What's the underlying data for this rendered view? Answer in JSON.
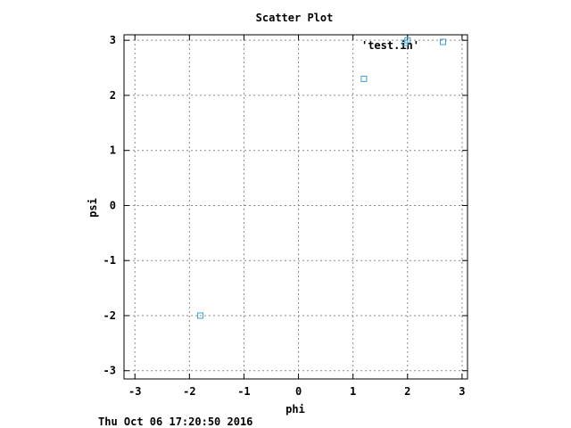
{
  "chart_data": {
    "type": "scatter",
    "title": "Scatter Plot",
    "xlabel": "phi",
    "ylabel": "psi",
    "xlim": [
      -3.2,
      3.1
    ],
    "ylim": [
      -3.15,
      3.1
    ],
    "xticks": [
      -3,
      -2,
      -1,
      0,
      1,
      2,
      3
    ],
    "yticks": [
      -3,
      -2,
      -1,
      0,
      1,
      2,
      3
    ],
    "xtick_labels": [
      "-3",
      "-2",
      "-1",
      "0",
      "1",
      "2",
      "3"
    ],
    "ytick_labels": [
      "-3",
      "-2",
      "-1",
      "0",
      "1",
      "2",
      "3"
    ],
    "grid": true,
    "legend_position": "top-right",
    "series": [
      {
        "name": "'test.in'",
        "color": "#3aa0d0",
        "marker": "open-square",
        "x": [
          -1.8,
          1.2,
          2.0,
          2.65
        ],
        "y": [
          -2.0,
          2.3,
          3.0,
          2.97
        ]
      }
    ]
  },
  "timestamp": "Thu Oct 06 17:20:50 2016"
}
